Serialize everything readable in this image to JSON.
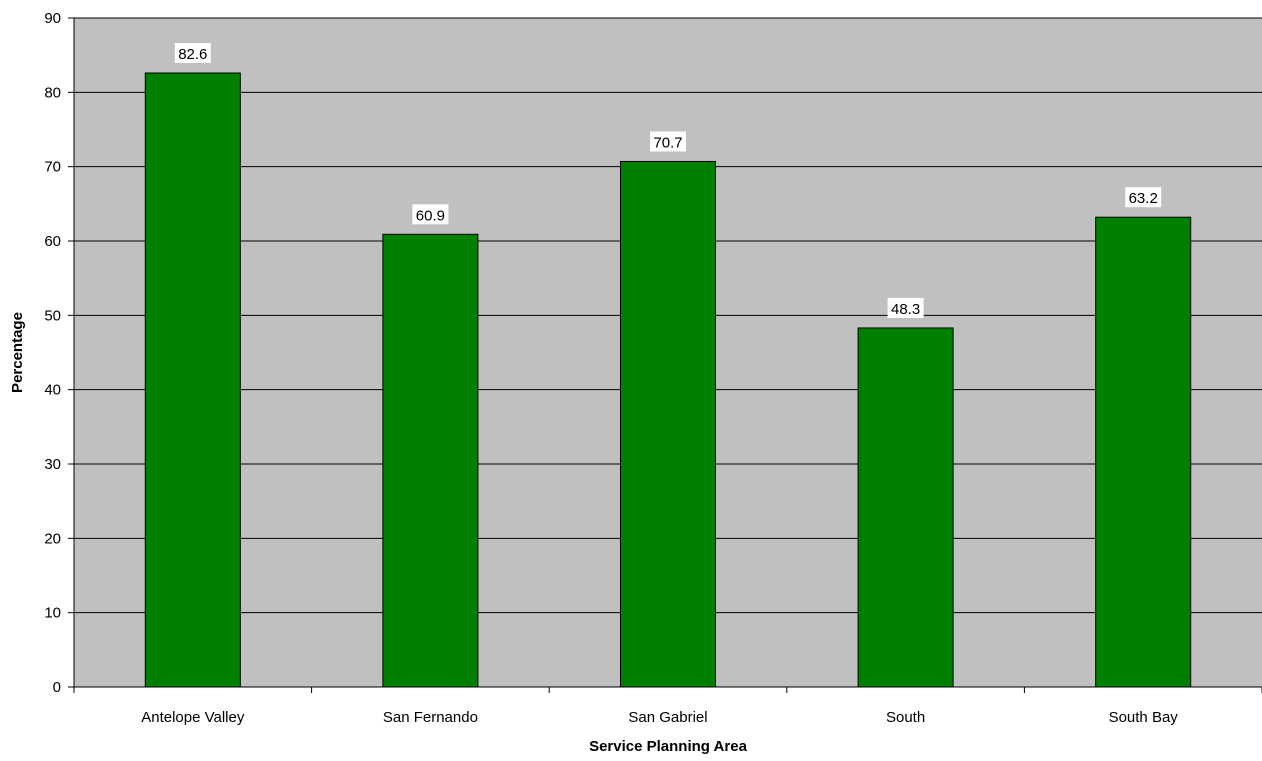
{
  "colors": {
    "plot_background": "#c0c0c0",
    "bar_fill": "#008000",
    "bar_stroke": "#000000",
    "gridline": "#000000",
    "label_background": "#ffffff"
  },
  "chart_data": {
    "type": "bar",
    "title": "",
    "xlabel": "Service Planning Area",
    "ylabel": "Percentage",
    "categories": [
      "Antelope Valley",
      "San Fernando",
      "San Gabriel",
      "South",
      "South Bay"
    ],
    "values": [
      82.6,
      60.9,
      70.7,
      48.3,
      63.2
    ],
    "data_labels": [
      "82.6",
      "60.9",
      "70.7",
      "48.3",
      "63.2"
    ],
    "ylim": [
      0,
      90
    ],
    "yticks": [
      0,
      10,
      20,
      30,
      40,
      50,
      60,
      70,
      80,
      90
    ],
    "grid": true,
    "legend": "none"
  }
}
